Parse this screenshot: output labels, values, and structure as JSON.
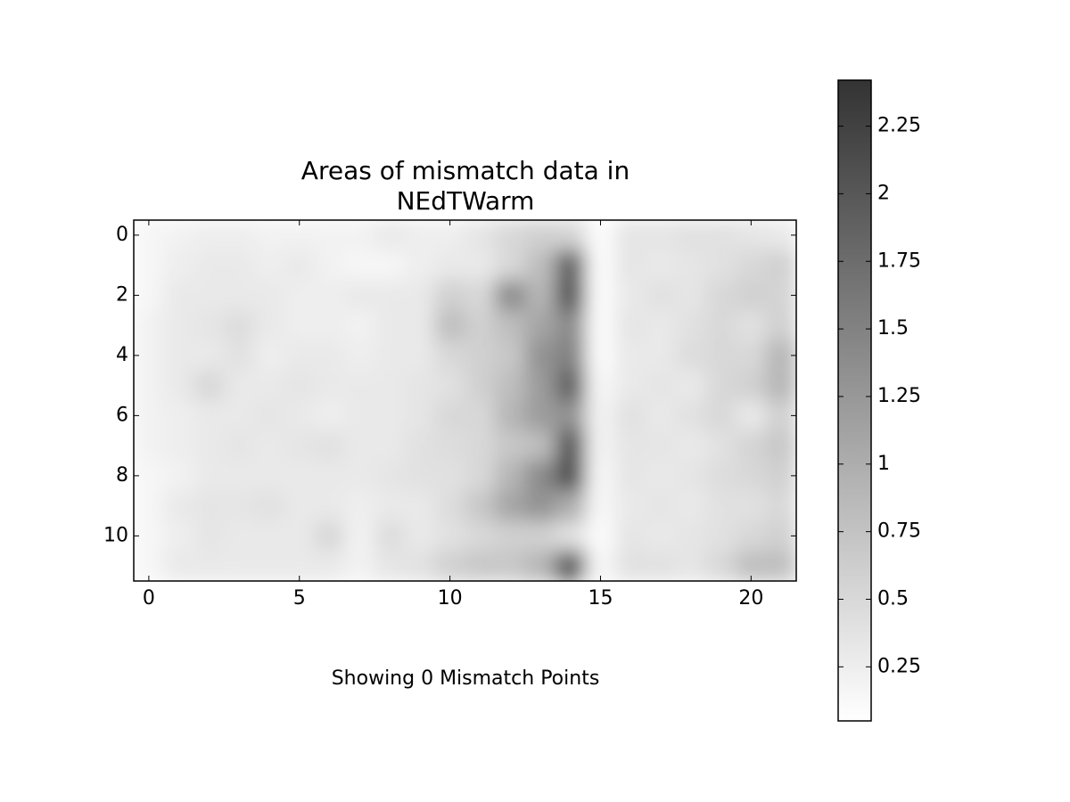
{
  "chart_data": {
    "type": "heatmap",
    "title": "Areas of mismatch data in\nNEdTWarm",
    "annotation": "Showing 0 Mismatch Points",
    "xlim": [
      -0.5,
      21.5
    ],
    "ylim": [
      11.5,
      -0.5
    ],
    "xticks": [
      0,
      5,
      10,
      15,
      20
    ],
    "yticks": [
      0,
      2,
      4,
      6,
      8,
      10
    ],
    "clim": [
      0.05,
      2.42
    ],
    "cticks": [
      0.25,
      0.5,
      0.75,
      1,
      1.25,
      1.5,
      1.75,
      2,
      2.25
    ],
    "colormap": [
      "#ffffff",
      "#333333"
    ],
    "z": [
      [
        0.15,
        0.2,
        0.25,
        0.25,
        0.2,
        0.2,
        0.2,
        0.2,
        0.3,
        0.25,
        0.25,
        0.35,
        0.5,
        0.6,
        0.55,
        0.1,
        0.35,
        0.35,
        0.4,
        0.4,
        0.35,
        0.3
      ],
      [
        0.15,
        0.25,
        0.3,
        0.3,
        0.25,
        0.3,
        0.2,
        0.15,
        0.15,
        0.25,
        0.3,
        0.3,
        0.5,
        0.8,
        1.9,
        0.1,
        0.35,
        0.3,
        0.35,
        0.4,
        0.5,
        0.6
      ],
      [
        0.15,
        0.3,
        0.3,
        0.3,
        0.3,
        0.25,
        0.25,
        0.3,
        0.3,
        0.3,
        0.6,
        0.5,
        1.4,
        0.9,
        2.0,
        0.1,
        0.3,
        0.4,
        0.35,
        0.5,
        0.6,
        0.55
      ],
      [
        0.2,
        0.3,
        0.35,
        0.45,
        0.3,
        0.25,
        0.25,
        0.2,
        0.3,
        0.3,
        0.8,
        0.6,
        0.8,
        1.1,
        1.4,
        0.1,
        0.35,
        0.3,
        0.4,
        0.5,
        0.4,
        0.6
      ],
      [
        0.2,
        0.3,
        0.3,
        0.4,
        0.25,
        0.3,
        0.3,
        0.25,
        0.3,
        0.3,
        0.5,
        0.6,
        0.7,
        1.3,
        1.5,
        0.1,
        0.3,
        0.3,
        0.45,
        0.5,
        0.5,
        0.9
      ],
      [
        0.2,
        0.3,
        0.5,
        0.3,
        0.3,
        0.35,
        0.3,
        0.3,
        0.3,
        0.35,
        0.4,
        0.6,
        0.8,
        1.2,
        1.9,
        0.15,
        0.3,
        0.35,
        0.3,
        0.5,
        0.6,
        0.9
      ],
      [
        0.2,
        0.25,
        0.3,
        0.3,
        0.35,
        0.3,
        0.25,
        0.3,
        0.3,
        0.35,
        0.5,
        0.5,
        0.9,
        1.2,
        1.3,
        0.2,
        0.4,
        0.3,
        0.4,
        0.5,
        0.3,
        0.6
      ],
      [
        0.2,
        0.25,
        0.3,
        0.35,
        0.3,
        0.35,
        0.4,
        0.3,
        0.3,
        0.4,
        0.45,
        0.5,
        0.7,
        0.8,
        2.0,
        0.2,
        0.35,
        0.35,
        0.3,
        0.4,
        0.55,
        0.7
      ],
      [
        0.15,
        0.2,
        0.3,
        0.3,
        0.3,
        0.3,
        0.3,
        0.3,
        0.35,
        0.4,
        0.4,
        0.5,
        0.9,
        1.4,
        2.1,
        0.15,
        0.35,
        0.3,
        0.35,
        0.45,
        0.5,
        0.6
      ],
      [
        0.15,
        0.3,
        0.35,
        0.35,
        0.4,
        0.3,
        0.3,
        0.25,
        0.3,
        0.3,
        0.45,
        0.7,
        1.1,
        1.3,
        1.0,
        0.15,
        0.3,
        0.35,
        0.3,
        0.4,
        0.4,
        0.5
      ],
      [
        0.15,
        0.25,
        0.35,
        0.3,
        0.3,
        0.3,
        0.5,
        0.2,
        0.45,
        0.3,
        0.4,
        0.5,
        0.6,
        0.6,
        0.4,
        0.1,
        0.35,
        0.3,
        0.35,
        0.4,
        0.5,
        0.6
      ],
      [
        0.15,
        0.3,
        0.3,
        0.3,
        0.3,
        0.3,
        0.3,
        0.2,
        0.35,
        0.4,
        0.6,
        0.7,
        0.7,
        0.9,
        2.0,
        0.15,
        0.4,
        0.4,
        0.35,
        0.5,
        0.8,
        0.8
      ]
    ]
  }
}
